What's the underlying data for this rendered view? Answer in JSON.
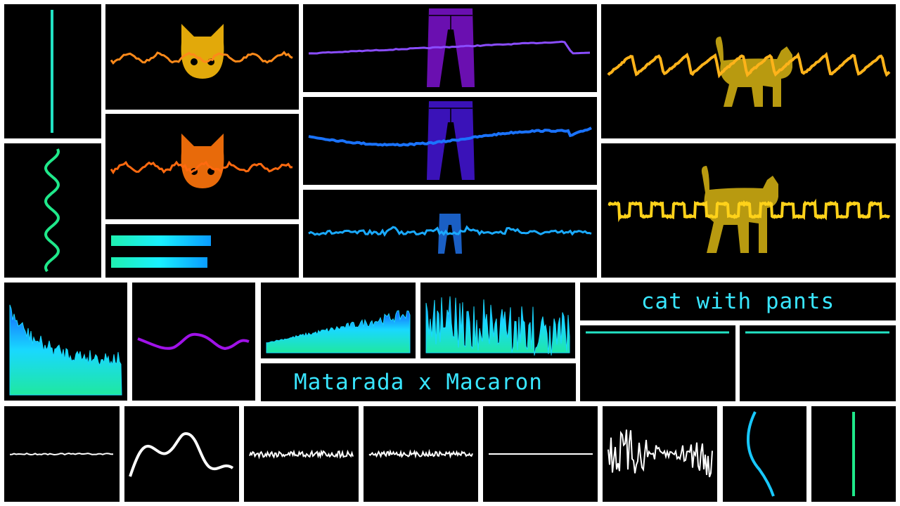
{
  "texts": {
    "cat_with_pants": "cat with pants",
    "matarada_x_macaron": "Matarada x Macaron"
  },
  "colors": {
    "background": "#000000",
    "frame": "#ffffff",
    "text": "#39e6ff",
    "teal": "#22e3c4",
    "green": "#1fe88a",
    "orange": "#ff8a1a",
    "orange_dark": "#ff6a10",
    "cat_gold": "#e2a90a",
    "cat_orange": "#e86a0a",
    "purple_line": "#8a4dff",
    "pants_purple": "#6a0fb0",
    "blue_line": "#1a73ff",
    "pants_indigo": "#3a12b8",
    "sky_line": "#1aaaff",
    "pants_blue": "#1a5fc4",
    "amber": "#ffb31a",
    "yellow": "#ffd21a",
    "cat_olive": "#b89a10",
    "violet": "#a012e8",
    "white": "#ffffff",
    "cyan": "#18c8ff"
  },
  "icons": {
    "cat_face": "cat-face-icon",
    "pants": "pants-icon",
    "walking_cat": "walking-cat-icon"
  }
}
